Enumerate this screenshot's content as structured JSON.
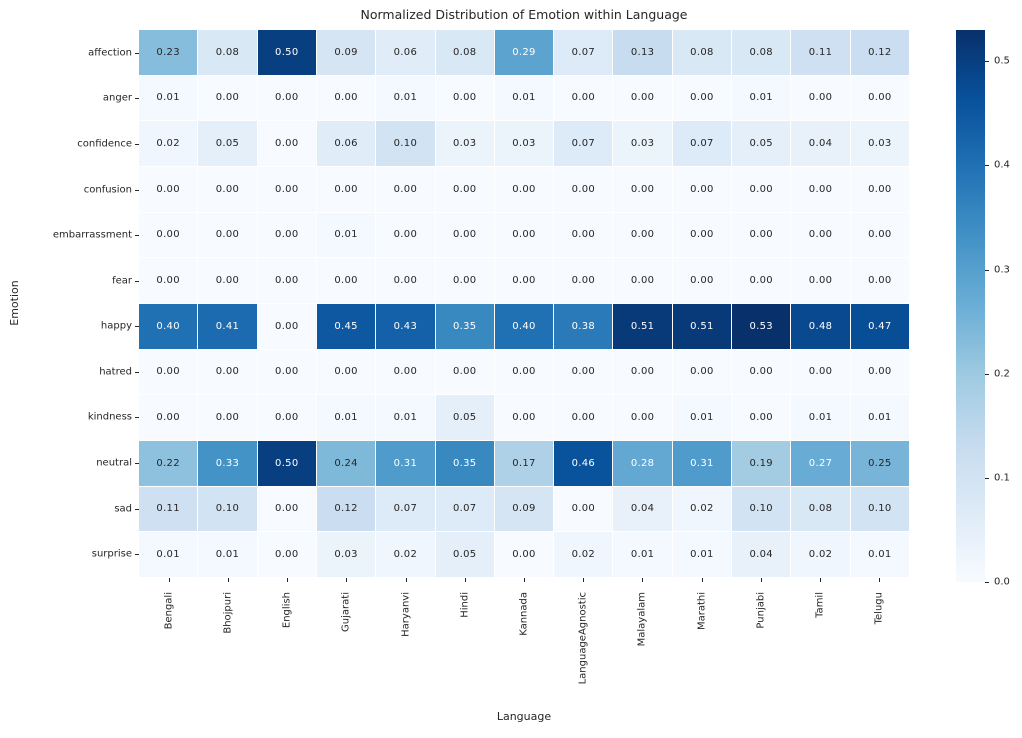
{
  "chart_data": {
    "type": "heatmap",
    "title": "Normalized Distribution of Emotion within Language",
    "xlabel": "Language",
    "ylabel": "Emotion",
    "colormap": "Blues",
    "vmin": 0.0,
    "vmax": 0.53,
    "grid": false,
    "legend_position": "colorbar-right",
    "colorbar_ticks": [
      0.0,
      0.1,
      0.2,
      0.3,
      0.4,
      0.5
    ],
    "annotation_decimals": 2,
    "rows": [
      "affection",
      "anger",
      "confidence",
      "confusion",
      "embarrassment",
      "fear",
      "happy",
      "hatred",
      "kindness",
      "neutral",
      "sad",
      "surprise"
    ],
    "columns": [
      "Bengali",
      "Bhojpuri",
      "English",
      "Gujarati",
      "Haryanvi",
      "Hindi",
      "Kannada",
      "LanguageAgnostic",
      "Malayalam",
      "Marathi",
      "Punjabi",
      "Tamil",
      "Telugu"
    ],
    "values": [
      [
        0.23,
        0.08,
        0.5,
        0.09,
        0.06,
        0.08,
        0.29,
        0.07,
        0.13,
        0.08,
        0.08,
        0.11,
        0.12
      ],
      [
        0.01,
        0.0,
        0.0,
        0.0,
        0.01,
        0.0,
        0.01,
        0.0,
        0.0,
        0.0,
        0.01,
        0.0,
        0.0
      ],
      [
        0.02,
        0.05,
        0.0,
        0.06,
        0.1,
        0.03,
        0.03,
        0.07,
        0.03,
        0.07,
        0.05,
        0.04,
        0.03
      ],
      [
        0.0,
        0.0,
        0.0,
        0.0,
        0.0,
        0.0,
        0.0,
        0.0,
        0.0,
        0.0,
        0.0,
        0.0,
        0.0
      ],
      [
        0.0,
        0.0,
        0.0,
        0.01,
        0.0,
        0.0,
        0.0,
        0.0,
        0.0,
        0.0,
        0.0,
        0.0,
        0.0
      ],
      [
        0.0,
        0.0,
        0.0,
        0.0,
        0.0,
        0.0,
        0.0,
        0.0,
        0.0,
        0.0,
        0.0,
        0.0,
        0.0
      ],
      [
        0.4,
        0.41,
        0.0,
        0.45,
        0.43,
        0.35,
        0.4,
        0.38,
        0.51,
        0.51,
        0.53,
        0.48,
        0.47
      ],
      [
        0.0,
        0.0,
        0.0,
        0.0,
        0.0,
        0.0,
        0.0,
        0.0,
        0.0,
        0.0,
        0.0,
        0.0,
        0.0
      ],
      [
        0.0,
        0.0,
        0.0,
        0.01,
        0.01,
        0.05,
        0.0,
        0.0,
        0.0,
        0.01,
        0.0,
        0.01,
        0.01
      ],
      [
        0.22,
        0.33,
        0.5,
        0.24,
        0.31,
        0.35,
        0.17,
        0.46,
        0.28,
        0.31,
        0.19,
        0.27,
        0.25
      ],
      [
        0.11,
        0.1,
        0.0,
        0.12,
        0.07,
        0.07,
        0.09,
        0.0,
        0.04,
        0.02,
        0.1,
        0.08,
        0.1
      ],
      [
        0.01,
        0.01,
        0.0,
        0.03,
        0.02,
        0.05,
        0.0,
        0.02,
        0.01,
        0.01,
        0.04,
        0.02,
        0.01
      ]
    ]
  },
  "colors": {
    "background": "#ffffff",
    "label_text": "#262626",
    "annotation_dark": "#262626",
    "annotation_light": "#ffffff",
    "colormap_stops": [
      "#f7fbff",
      "#deebf7",
      "#c6dbef",
      "#9ecae1",
      "#6baed6",
      "#4292c6",
      "#2171b5",
      "#08519c",
      "#08306b"
    ],
    "luminance_threshold": 0.408
  }
}
